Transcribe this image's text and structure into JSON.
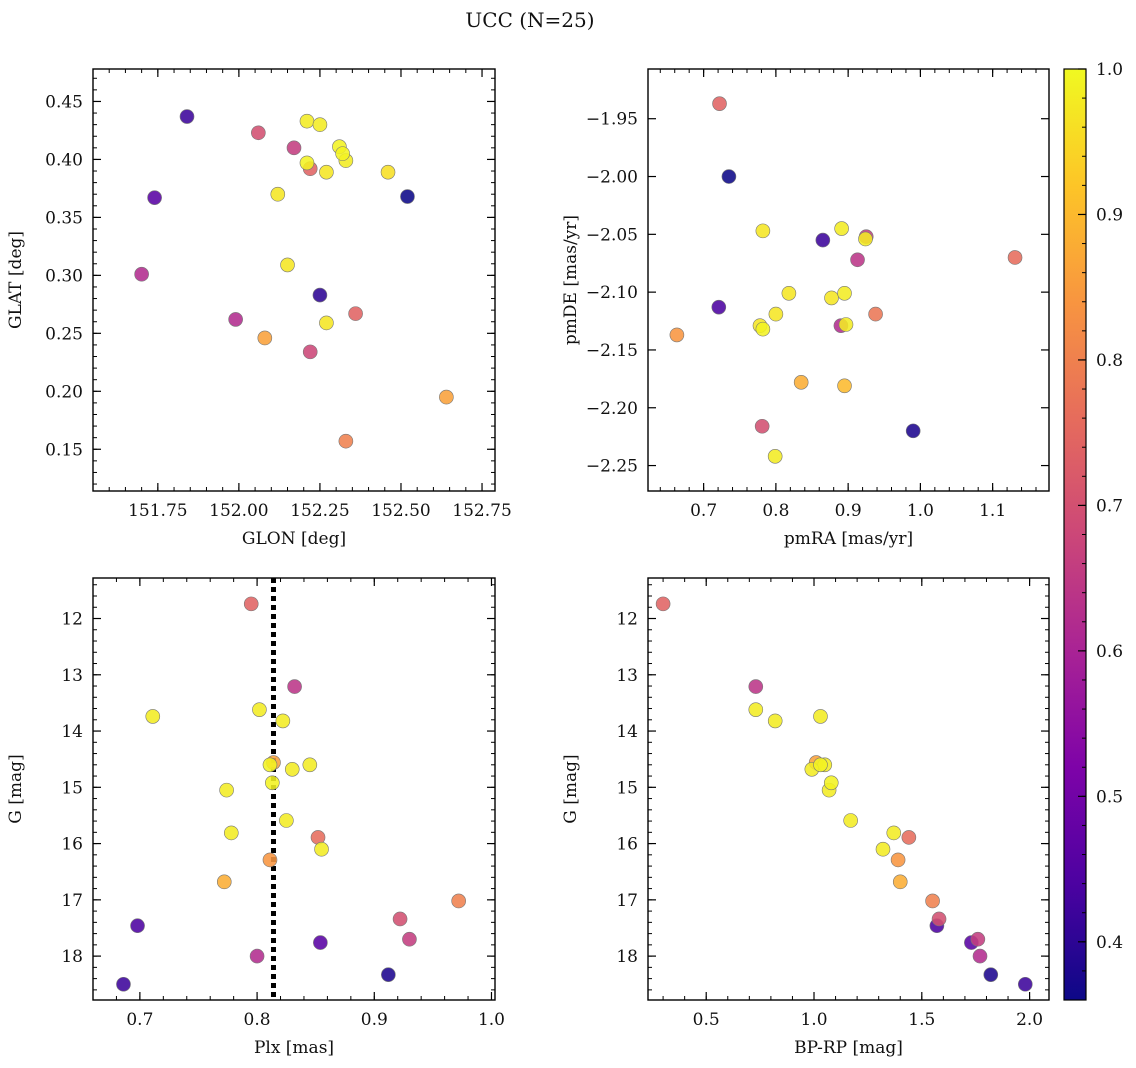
{
  "figure": {
    "title": "UCC (N=25)"
  },
  "colorbar": {
    "range": [
      0.36,
      1.0
    ],
    "ticks": [
      "0.4",
      "0.5",
      "0.6",
      "0.7",
      "0.8",
      "0.9",
      "1.0"
    ],
    "colormap": "plasma"
  },
  "chart_data": [
    {
      "type": "scatter",
      "xlabel": "GLON [deg]",
      "ylabel": "GLAT [deg]",
      "xlim": [
        151.55,
        152.79
      ],
      "ylim": [
        0.114,
        0.478
      ],
      "xticks": [
        "151.75",
        "152.00",
        "152.25",
        "152.50",
        "152.75"
      ],
      "yticks": [
        "0.15",
        "0.20",
        "0.25",
        "0.30",
        "0.35",
        "0.40",
        "0.45"
      ],
      "points": [
        {
          "x": 151.84,
          "y": 0.437,
          "p": 0.42
        },
        {
          "x": 151.74,
          "y": 0.367,
          "p": 0.46
        },
        {
          "x": 151.7,
          "y": 0.301,
          "p": 0.62
        },
        {
          "x": 152.06,
          "y": 0.423,
          "p": 0.7
        },
        {
          "x": 152.17,
          "y": 0.41,
          "p": 0.66
        },
        {
          "x": 152.21,
          "y": 0.433,
          "p": 0.98
        },
        {
          "x": 152.25,
          "y": 0.43,
          "p": 0.98
        },
        {
          "x": 152.21,
          "y": 0.397,
          "p": 0.99
        },
        {
          "x": 152.22,
          "y": 0.392,
          "p": 0.74
        },
        {
          "x": 152.27,
          "y": 0.389,
          "p": 0.97
        },
        {
          "x": 152.31,
          "y": 0.411,
          "p": 0.99
        },
        {
          "x": 152.32,
          "y": 0.405,
          "p": 0.99
        },
        {
          "x": 152.33,
          "y": 0.399,
          "p": 0.98
        },
        {
          "x": 152.46,
          "y": 0.389,
          "p": 0.96
        },
        {
          "x": 152.52,
          "y": 0.368,
          "p": 0.36
        },
        {
          "x": 152.12,
          "y": 0.37,
          "p": 0.97
        },
        {
          "x": 152.15,
          "y": 0.309,
          "p": 0.97
        },
        {
          "x": 152.25,
          "y": 0.283,
          "p": 0.4
        },
        {
          "x": 151.99,
          "y": 0.262,
          "p": 0.62
        },
        {
          "x": 152.08,
          "y": 0.246,
          "p": 0.86
        },
        {
          "x": 152.27,
          "y": 0.259,
          "p": 0.97
        },
        {
          "x": 152.36,
          "y": 0.267,
          "p": 0.74
        },
        {
          "x": 152.22,
          "y": 0.234,
          "p": 0.68
        },
        {
          "x": 152.64,
          "y": 0.195,
          "p": 0.86
        },
        {
          "x": 152.33,
          "y": 0.157,
          "p": 0.8
        }
      ]
    },
    {
      "type": "scatter",
      "xlabel": "pmRA [mas/yr]",
      "ylabel": "pmDE [mas/yr]",
      "xlim": [
        0.623,
        1.178
      ],
      "ylim": [
        -2.272,
        -1.907
      ],
      "xticks": [
        "0.7",
        "0.8",
        "0.9",
        "1.0",
        "1.1"
      ],
      "yticks": [
        "−1.95",
        "−2.00",
        "−2.05",
        "−2.10",
        "−2.15",
        "−2.20",
        "−2.25"
      ],
      "points": [
        {
          "x": 0.722,
          "y": -1.937,
          "p": 0.74
        },
        {
          "x": 0.735,
          "y": -2.0,
          "p": 0.36
        },
        {
          "x": 0.782,
          "y": -2.047,
          "p": 0.97
        },
        {
          "x": 0.865,
          "y": -2.055,
          "p": 0.42
        },
        {
          "x": 0.891,
          "y": -2.045,
          "p": 0.98
        },
        {
          "x": 0.925,
          "y": -2.052,
          "p": 0.66
        },
        {
          "x": 0.924,
          "y": -2.054,
          "p": 0.98
        },
        {
          "x": 1.131,
          "y": -2.07,
          "p": 0.76
        },
        {
          "x": 0.913,
          "y": -2.072,
          "p": 0.64
        },
        {
          "x": 0.818,
          "y": -2.101,
          "p": 0.97
        },
        {
          "x": 0.877,
          "y": -2.105,
          "p": 0.97
        },
        {
          "x": 0.895,
          "y": -2.101,
          "p": 0.98
        },
        {
          "x": 0.721,
          "y": -2.113,
          "p": 0.44
        },
        {
          "x": 0.8,
          "y": -2.119,
          "p": 0.97
        },
        {
          "x": 0.938,
          "y": -2.119,
          "p": 0.78
        },
        {
          "x": 0.778,
          "y": -2.129,
          "p": 0.97
        },
        {
          "x": 0.782,
          "y": -2.132,
          "p": 0.99
        },
        {
          "x": 0.89,
          "y": -2.129,
          "p": 0.62
        },
        {
          "x": 0.897,
          "y": -2.128,
          "p": 0.98
        },
        {
          "x": 0.663,
          "y": -2.137,
          "p": 0.84
        },
        {
          "x": 0.835,
          "y": -2.178,
          "p": 0.88
        },
        {
          "x": 0.895,
          "y": -2.181,
          "p": 0.9
        },
        {
          "x": 0.781,
          "y": -2.216,
          "p": 0.7
        },
        {
          "x": 0.99,
          "y": -2.22,
          "p": 0.38
        },
        {
          "x": 0.799,
          "y": -2.242,
          "p": 0.98
        }
      ]
    },
    {
      "type": "scatter",
      "xlabel": "Plx [mas]",
      "ylabel": "G [mag]",
      "xlim": [
        0.66,
        1.003
      ],
      "ylim": [
        18.78,
        11.28
      ],
      "y_inverted": true,
      "xticks": [
        "0.7",
        "0.8",
        "0.9",
        "1.0"
      ],
      "yticks": [
        "12",
        "13",
        "14",
        "15",
        "16",
        "17",
        "18"
      ],
      "vline": {
        "x": 0.814,
        "style": "dotted"
      },
      "points": [
        {
          "x": 0.795,
          "y": 11.74,
          "p": 0.74
        },
        {
          "x": 0.832,
          "y": 13.21,
          "p": 0.64
        },
        {
          "x": 0.711,
          "y": 13.74,
          "p": 0.98
        },
        {
          "x": 0.802,
          "y": 13.62,
          "p": 0.98
        },
        {
          "x": 0.822,
          "y": 13.82,
          "p": 0.98
        },
        {
          "x": 0.811,
          "y": 14.6,
          "p": 0.99
        },
        {
          "x": 0.814,
          "y": 14.56,
          "p": 0.86
        },
        {
          "x": 0.83,
          "y": 14.68,
          "p": 0.98
        },
        {
          "x": 0.845,
          "y": 14.6,
          "p": 0.98
        },
        {
          "x": 0.813,
          "y": 14.92,
          "p": 0.99
        },
        {
          "x": 0.774,
          "y": 15.05,
          "p": 0.98
        },
        {
          "x": 0.778,
          "y": 15.81,
          "p": 0.98
        },
        {
          "x": 0.825,
          "y": 15.59,
          "p": 0.98
        },
        {
          "x": 0.852,
          "y": 15.89,
          "p": 0.76
        },
        {
          "x": 0.855,
          "y": 16.1,
          "p": 0.98
        },
        {
          "x": 0.811,
          "y": 16.29,
          "p": 0.84
        },
        {
          "x": 0.772,
          "y": 16.68,
          "p": 0.88
        },
        {
          "x": 0.972,
          "y": 17.02,
          "p": 0.8
        },
        {
          "x": 0.922,
          "y": 17.34,
          "p": 0.7
        },
        {
          "x": 0.698,
          "y": 17.46,
          "p": 0.44
        },
        {
          "x": 0.93,
          "y": 17.7,
          "p": 0.66
        },
        {
          "x": 0.854,
          "y": 17.76,
          "p": 0.46
        },
        {
          "x": 0.8,
          "y": 18.0,
          "p": 0.62
        },
        {
          "x": 0.912,
          "y": 18.33,
          "p": 0.38
        },
        {
          "x": 0.686,
          "y": 18.5,
          "p": 0.42
        }
      ]
    },
    {
      "type": "scatter",
      "xlabel": "BP-RP [mag]",
      "ylabel": "G [mag]",
      "xlim": [
        0.23,
        2.09
      ],
      "ylim": [
        18.78,
        11.28
      ],
      "y_inverted": true,
      "xticks": [
        "0.5",
        "1.0",
        "1.5",
        "2.0"
      ],
      "yticks": [
        "12",
        "13",
        "14",
        "15",
        "16",
        "17",
        "18"
      ],
      "points": [
        {
          "x": 0.3,
          "y": 11.74,
          "p": 0.74
        },
        {
          "x": 0.73,
          "y": 13.21,
          "p": 0.64
        },
        {
          "x": 0.73,
          "y": 13.62,
          "p": 0.98
        },
        {
          "x": 0.82,
          "y": 13.82,
          "p": 0.98
        },
        {
          "x": 1.03,
          "y": 13.74,
          "p": 0.98
        },
        {
          "x": 1.01,
          "y": 14.56,
          "p": 0.86
        },
        {
          "x": 1.05,
          "y": 14.6,
          "p": 0.98
        },
        {
          "x": 0.99,
          "y": 14.68,
          "p": 0.98
        },
        {
          "x": 1.03,
          "y": 14.6,
          "p": 0.99
        },
        {
          "x": 1.08,
          "y": 14.92,
          "p": 0.99
        },
        {
          "x": 1.07,
          "y": 15.05,
          "p": 0.98
        },
        {
          "x": 1.17,
          "y": 15.59,
          "p": 0.98
        },
        {
          "x": 1.37,
          "y": 15.81,
          "p": 0.98
        },
        {
          "x": 1.44,
          "y": 15.89,
          "p": 0.76
        },
        {
          "x": 1.32,
          "y": 16.1,
          "p": 0.98
        },
        {
          "x": 1.39,
          "y": 16.29,
          "p": 0.84
        },
        {
          "x": 1.4,
          "y": 16.68,
          "p": 0.88
        },
        {
          "x": 1.55,
          "y": 17.02,
          "p": 0.8
        },
        {
          "x": 1.58,
          "y": 17.34,
          "p": 0.7
        },
        {
          "x": 1.57,
          "y": 17.46,
          "p": 0.44
        },
        {
          "x": 1.76,
          "y": 17.7,
          "p": 0.66
        },
        {
          "x": 1.73,
          "y": 17.76,
          "p": 0.46
        },
        {
          "x": 1.77,
          "y": 18.0,
          "p": 0.62
        },
        {
          "x": 1.82,
          "y": 18.33,
          "p": 0.38
        },
        {
          "x": 1.98,
          "y": 18.5,
          "p": 0.42
        }
      ]
    }
  ]
}
